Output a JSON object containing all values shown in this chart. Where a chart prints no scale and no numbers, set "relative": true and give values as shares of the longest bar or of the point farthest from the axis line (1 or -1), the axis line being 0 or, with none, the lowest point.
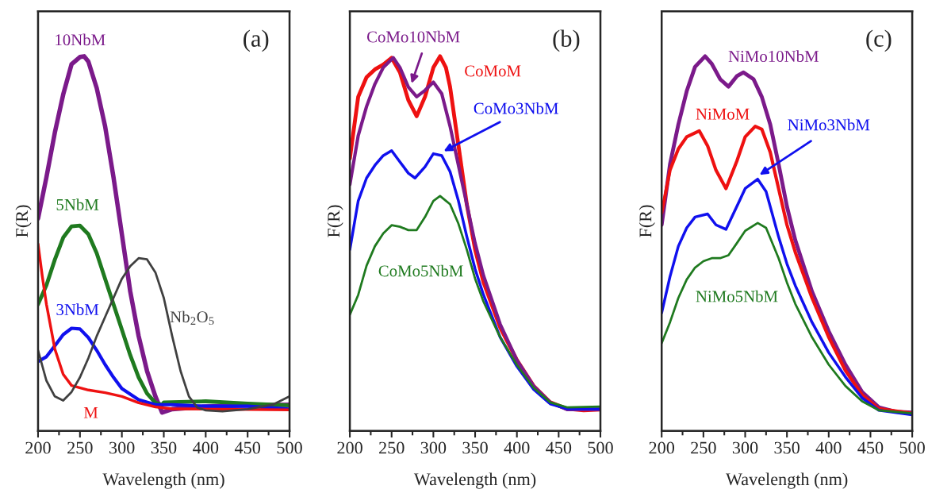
{
  "chart_data": [
    {
      "type": "line",
      "relative": true,
      "xlabel": "Wavelength (nm)",
      "ylabel": "F(R)",
      "xlim": [
        200,
        500
      ],
      "xticks": [
        200,
        250,
        300,
        350,
        400,
        450,
        500
      ],
      "annotations": [
        "(a)"
      ],
      "series": [
        {
          "name": "10NbM",
          "color": "#7b1a8a",
          "x": [
            200,
            210,
            220,
            230,
            240,
            250,
            255,
            260,
            270,
            280,
            290,
            300,
            310,
            320,
            330,
            340,
            348,
            360,
            400,
            450,
            500
          ],
          "values": [
            0.567,
            0.677,
            0.796,
            0.898,
            0.979,
            0.998,
            1,
            0.986,
            0.915,
            0.813,
            0.677,
            0.525,
            0.372,
            0.253,
            0.16,
            0.092,
            0.049,
            0.058,
            0.065,
            0.068,
            0.07
          ]
        },
        {
          "name": "5NbM",
          "color": "#1f7a1f",
          "x": [
            200,
            210,
            220,
            230,
            240,
            250,
            260,
            270,
            280,
            290,
            300,
            310,
            320,
            330,
            340,
            348,
            350,
            400,
            450,
            500
          ],
          "values": [
            0.338,
            0.389,
            0.457,
            0.516,
            0.546,
            0.548,
            0.525,
            0.474,
            0.406,
            0.338,
            0.27,
            0.202,
            0.143,
            0.1,
            0.075,
            0.07,
            0.076,
            0.079,
            0.073,
            0.068
          ]
        },
        {
          "name": "3NbM",
          "color": "#1010ee",
          "x": [
            200,
            210,
            220,
            230,
            240,
            250,
            260,
            270,
            280,
            290,
            300,
            320,
            340,
            360,
            400,
            450,
            500
          ],
          "values": [
            0.185,
            0.198,
            0.227,
            0.257,
            0.274,
            0.272,
            0.249,
            0.215,
            0.177,
            0.143,
            0.113,
            0.083,
            0.07,
            0.07,
            0.066,
            0.066,
            0.058
          ]
        },
        {
          "name": "M",
          "color": "#ee1111",
          "x": [
            200,
            205,
            210,
            220,
            230,
            240,
            260,
            280,
            300,
            320,
            340,
            360,
            400,
            500
          ],
          "values": [
            0.499,
            0.414,
            0.338,
            0.219,
            0.151,
            0.121,
            0.109,
            0.102,
            0.092,
            0.075,
            0.064,
            0.059,
            0.058,
            0.056
          ]
        },
        {
          "name": "Nb$_{2}$O$_{5}$",
          "color": "#404040",
          "x": [
            200,
            210,
            220,
            230,
            240,
            250,
            260,
            270,
            280,
            290,
            300,
            310,
            320,
            330,
            340,
            350,
            360,
            370,
            380,
            390,
            400,
            420,
            450,
            480,
            500
          ],
          "values": [
            0.215,
            0.134,
            0.092,
            0.081,
            0.104,
            0.143,
            0.194,
            0.253,
            0.304,
            0.355,
            0.406,
            0.44,
            0.461,
            0.458,
            0.423,
            0.355,
            0.253,
            0.16,
            0.092,
            0.062,
            0.055,
            0.052,
            0.058,
            0.07,
            0.092
          ]
        }
      ]
    },
    {
      "type": "line",
      "relative": true,
      "xlabel": "Wavelength (nm)",
      "ylabel": "F(R)",
      "xlim": [
        200,
        500
      ],
      "xticks": [
        200,
        250,
        300,
        350,
        400,
        450,
        500
      ],
      "annotations": [
        "(b)"
      ],
      "series": [
        {
          "name": "CoMoM",
          "color": "#ee1111",
          "x": [
            200,
            210,
            220,
            230,
            240,
            250,
            260,
            270,
            280,
            290,
            300,
            308,
            315,
            320,
            330,
            340,
            350,
            360,
            380,
            400,
            420,
            440,
            460,
            480,
            500
          ],
          "values": [
            0.727,
            0.892,
            0.944,
            0.965,
            0.978,
            0.996,
            0.957,
            0.883,
            0.84,
            0.892,
            0.97,
            1,
            0.97,
            0.918,
            0.762,
            0.605,
            0.484,
            0.397,
            0.276,
            0.189,
            0.12,
            0.076,
            0.059,
            0.055,
            0.057
          ]
        },
        {
          "name": "CoMo10NbM",
          "color": "#7b1a8a",
          "x": [
            200,
            210,
            220,
            230,
            240,
            252,
            260,
            270,
            280,
            290,
            300,
            310,
            320,
            330,
            340,
            350,
            360,
            380,
            400,
            420,
            440,
            460,
            500
          ],
          "values": [
            0.657,
            0.788,
            0.866,
            0.926,
            0.97,
            0.996,
            0.97,
            0.918,
            0.892,
            0.909,
            0.931,
            0.9,
            0.813,
            0.709,
            0.605,
            0.501,
            0.415,
            0.285,
            0.189,
            0.12,
            0.076,
            0.057,
            0.057
          ]
        },
        {
          "name": "CoMo3NbM",
          "color": "#1010ee",
          "x": [
            200,
            210,
            220,
            230,
            240,
            250,
            260,
            270,
            278,
            290,
            300,
            310,
            320,
            330,
            340,
            350,
            360,
            380,
            400,
            420,
            440,
            460,
            500
          ],
          "values": [
            0.484,
            0.614,
            0.675,
            0.709,
            0.735,
            0.748,
            0.718,
            0.688,
            0.675,
            0.705,
            0.74,
            0.735,
            0.692,
            0.614,
            0.519,
            0.432,
            0.363,
            0.25,
            0.172,
            0.111,
            0.072,
            0.059,
            0.059
          ]
        },
        {
          "name": "CoMo5NbM",
          "color": "#1f7a1f",
          "x": [
            200,
            210,
            220,
            230,
            240,
            250,
            260,
            270,
            280,
            290,
            300,
            308,
            320,
            330,
            340,
            350,
            360,
            380,
            400,
            420,
            440,
            460,
            500
          ],
          "values": [
            0.31,
            0.363,
            0.441,
            0.493,
            0.527,
            0.549,
            0.545,
            0.536,
            0.536,
            0.571,
            0.614,
            0.627,
            0.605,
            0.553,
            0.484,
            0.406,
            0.345,
            0.25,
            0.176,
            0.115,
            0.076,
            0.063,
            0.065
          ]
        }
      ]
    },
    {
      "type": "line",
      "relative": true,
      "xlabel": "Wavelength (nm)",
      "ylabel": "F(R)",
      "xlim": [
        200,
        500
      ],
      "xticks": [
        200,
        250,
        300,
        350,
        400,
        450,
        500
      ],
      "annotations": [
        "(c)"
      ],
      "series": [
        {
          "name": "NiMo10NbM",
          "color": "#7b1a8a",
          "x": [
            200,
            210,
            220,
            230,
            240,
            252,
            260,
            270,
            280,
            290,
            298,
            310,
            320,
            330,
            340,
            350,
            360,
            380,
            400,
            420,
            440,
            460,
            480,
            500
          ],
          "values": [
            0.55,
            0.712,
            0.818,
            0.907,
            0.972,
            1,
            0.98,
            0.939,
            0.919,
            0.947,
            0.957,
            0.939,
            0.891,
            0.818,
            0.712,
            0.599,
            0.509,
            0.372,
            0.266,
            0.177,
            0.104,
            0.063,
            0.051,
            0.049
          ]
        },
        {
          "name": "NiMoM",
          "color": "#ee1111",
          "x": [
            200,
            210,
            220,
            230,
            245,
            255,
            265,
            277,
            290,
            300,
            312,
            320,
            330,
            340,
            350,
            360,
            380,
            400,
            420,
            440,
            460,
            500
          ],
          "values": [
            0.582,
            0.696,
            0.753,
            0.785,
            0.801,
            0.761,
            0.696,
            0.647,
            0.72,
            0.785,
            0.813,
            0.805,
            0.744,
            0.647,
            0.55,
            0.477,
            0.355,
            0.25,
            0.161,
            0.096,
            0.059,
            0.047
          ]
        },
        {
          "name": "NiMo3NbM",
          "color": "#1010ee",
          "x": [
            200,
            210,
            220,
            230,
            240,
            255,
            265,
            277,
            290,
            300,
            315,
            325,
            330,
            340,
            350,
            360,
            380,
            400,
            420,
            440,
            460,
            500
          ],
          "values": [
            0.315,
            0.412,
            0.493,
            0.542,
            0.571,
            0.579,
            0.55,
            0.538,
            0.599,
            0.647,
            0.672,
            0.639,
            0.599,
            0.518,
            0.446,
            0.388,
            0.29,
            0.209,
            0.144,
            0.088,
            0.055,
            0.043
          ]
        },
        {
          "name": "NiMo5NbM",
          "color": "#1f7a1f",
          "x": [
            200,
            210,
            220,
            230,
            240,
            250,
            260,
            270,
            280,
            290,
            300,
            315,
            325,
            340,
            350,
            360,
            380,
            400,
            420,
            440,
            460,
            500
          ],
          "values": [
            0.234,
            0.29,
            0.355,
            0.404,
            0.436,
            0.453,
            0.461,
            0.461,
            0.469,
            0.501,
            0.534,
            0.555,
            0.542,
            0.461,
            0.396,
            0.339,
            0.25,
            0.177,
            0.12,
            0.079,
            0.055,
            0.047
          ]
        }
      ]
    }
  ]
}
